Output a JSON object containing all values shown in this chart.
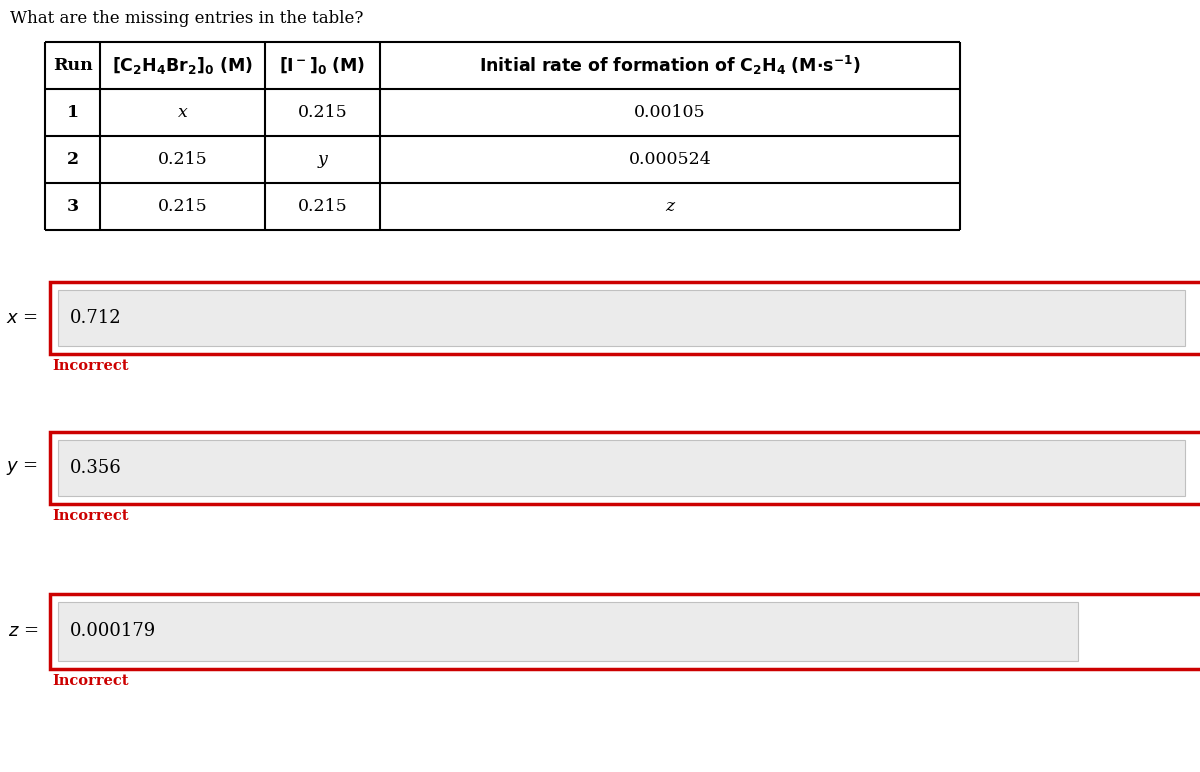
{
  "title": "What are the missing entries in the table?",
  "bg_color": "#ffffff",
  "table_border_color": "#000000",
  "answer_box_border_color": "#cc0000",
  "input_bg_color": "#ebebeb",
  "incorrect_color": "#cc0000",
  "title_fontsize": 12,
  "table_fontsize": 12.5,
  "answer_fontsize": 13,
  "incorrect_fontsize": 10.5,
  "table_rows": [
    [
      "1",
      "x",
      "0.215",
      "0.00105"
    ],
    [
      "2",
      "0.215",
      "y",
      "0.000524"
    ],
    [
      "3",
      "0.215",
      "0.215",
      "z"
    ]
  ],
  "answer_values": [
    "0.712",
    "0.356",
    "0.000179"
  ],
  "incorrect_label": "Incorrect"
}
